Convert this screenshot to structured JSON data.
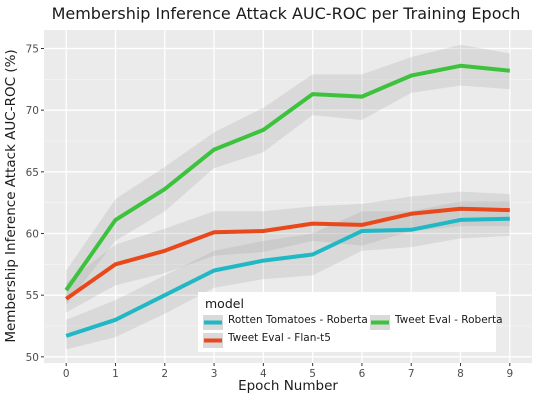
{
  "chart_data": {
    "type": "line",
    "title": "Membership Inference Attack AUC-ROC per Training Epoch",
    "xlabel": "Epoch Number",
    "ylabel": "Membership Inference Attack AUC-ROC (%)",
    "x": [
      0,
      1,
      2,
      3,
      4,
      5,
      6,
      7,
      8,
      9
    ],
    "xlim": [
      -0.45,
      9.45
    ],
    "ylim": [
      49.5,
      76.5
    ],
    "xticks": [
      "0",
      "1",
      "2",
      "3",
      "4",
      "5",
      "6",
      "7",
      "8",
      "9"
    ],
    "yticks": [
      50,
      55,
      60,
      65,
      70,
      75
    ],
    "grid": true,
    "legend": {
      "title": "model",
      "placement": "bottom-right inside"
    },
    "series": [
      {
        "name": "Rotten Tomatoes - Roberta",
        "color": "#1fb8c4",
        "values": [
          51.7,
          53.0,
          55.0,
          57.0,
          57.8,
          58.3,
          60.2,
          60.3,
          61.1,
          61.2
        ],
        "lower": [
          50.6,
          51.6,
          53.5,
          55.6,
          56.3,
          56.6,
          58.6,
          58.9,
          59.6,
          59.8
        ],
        "upper": [
          53.0,
          54.6,
          56.6,
          58.6,
          59.4,
          60.0,
          61.8,
          61.8,
          62.6,
          62.6
        ]
      },
      {
        "name": "Tweet Eval - Roberta",
        "color": "#3cc23c",
        "values": [
          55.4,
          61.1,
          63.6,
          66.8,
          68.4,
          71.3,
          71.1,
          72.8,
          73.6,
          73.2
        ],
        "lower": [
          54.2,
          59.4,
          61.8,
          65.3,
          66.6,
          69.6,
          69.2,
          71.4,
          72.0,
          71.7
        ],
        "upper": [
          57.0,
          62.8,
          65.4,
          68.2,
          70.2,
          72.9,
          72.9,
          74.3,
          75.3,
          74.6
        ]
      },
      {
        "name": "Tweet Eval - Flan-t5",
        "color": "#e8481a",
        "values": [
          54.7,
          57.5,
          58.6,
          60.1,
          60.2,
          60.8,
          60.7,
          61.6,
          62.0,
          61.9
        ],
        "lower": [
          53.6,
          55.8,
          56.8,
          58.2,
          58.5,
          59.4,
          59.0,
          60.2,
          60.6,
          60.6
        ],
        "upper": [
          56.0,
          59.1,
          60.4,
          61.8,
          61.8,
          62.2,
          62.4,
          63.0,
          63.4,
          63.2
        ]
      }
    ]
  }
}
